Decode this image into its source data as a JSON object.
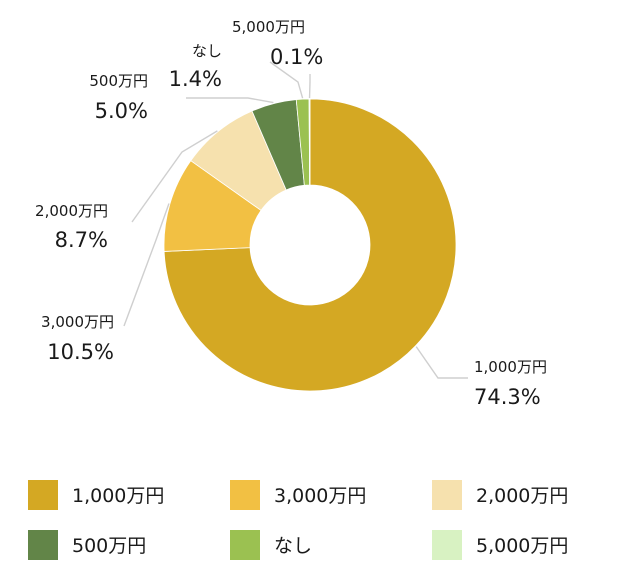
{
  "chart_data": {
    "type": "pie",
    "donut": true,
    "categories": [
      "1,000万円",
      "3,000万円",
      "2,000万円",
      "500万円",
      "なし",
      "5,000万円"
    ],
    "values": [
      74.3,
      10.5,
      8.7,
      5.0,
      1.4,
      0.1
    ],
    "value_labels": [
      "74.3%",
      "10.5%",
      "8.7%",
      "5.0%",
      "1.4%",
      "0.1%"
    ],
    "colors": [
      "#D4A823",
      "#F2C043",
      "#F6E1AE",
      "#628548",
      "#9BC151",
      "#D8F2C2"
    ],
    "legend": {
      "position": "bottom",
      "items": [
        "1,000万円",
        "3,000万円",
        "2,000万円",
        "500万円",
        "なし",
        "5,000万円"
      ]
    }
  }
}
